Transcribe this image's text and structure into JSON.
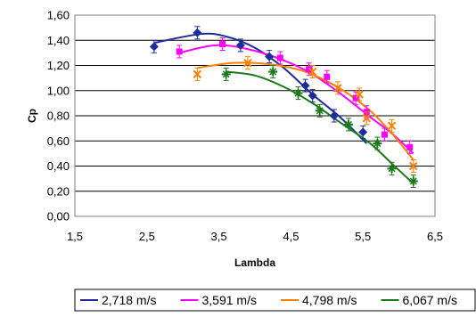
{
  "chart_data": {
    "type": "scatter",
    "title": "",
    "xlabel": "Lambda",
    "ylabel": "Cp",
    "xlim": [
      1.5,
      6.5
    ],
    "ylim": [
      0.0,
      1.6
    ],
    "x_ticks": [
      "1,5",
      "2,5",
      "3,5",
      "4,5",
      "5,5",
      "6,5"
    ],
    "y_ticks": [
      "0,00",
      "0,20",
      "0,40",
      "0,60",
      "0,80",
      "1,00",
      "1,20",
      "1,40",
      "1,60"
    ],
    "grid": true,
    "legend_position": "bottom",
    "series": [
      {
        "name": "2,718 m/s",
        "color": "#1f2d9a",
        "marker": "diamond",
        "points": [
          [
            2.6,
            1.35
          ],
          [
            3.2,
            1.46
          ],
          [
            3.8,
            1.36
          ],
          [
            4.2,
            1.27
          ],
          [
            4.7,
            1.04
          ],
          [
            4.8,
            0.96
          ],
          [
            5.1,
            0.8
          ],
          [
            5.5,
            0.67
          ]
        ],
        "fit": [
          [
            2.6,
            1.38
          ],
          [
            3.25,
            1.45
          ],
          [
            3.6,
            1.43
          ],
          [
            4.0,
            1.34
          ],
          [
            4.4,
            1.18
          ],
          [
            4.8,
            0.97
          ],
          [
            5.2,
            0.78
          ],
          [
            5.55,
            0.58
          ]
        ]
      },
      {
        "name": "3,591 m/s",
        "color": "#ff00ff",
        "marker": "square",
        "points": [
          [
            2.95,
            1.31
          ],
          [
            3.55,
            1.37
          ],
          [
            4.35,
            1.26
          ],
          [
            4.75,
            1.17
          ],
          [
            5.0,
            1.11
          ],
          [
            5.4,
            0.94
          ],
          [
            5.55,
            0.83
          ],
          [
            5.8,
            0.65
          ],
          [
            6.15,
            0.55
          ]
        ],
        "fit": [
          [
            2.95,
            1.3
          ],
          [
            3.45,
            1.36
          ],
          [
            3.9,
            1.33
          ],
          [
            4.4,
            1.24
          ],
          [
            4.8,
            1.13
          ],
          [
            5.2,
            0.97
          ],
          [
            5.6,
            0.79
          ],
          [
            5.9,
            0.66
          ],
          [
            6.2,
            0.5
          ]
        ]
      },
      {
        "name": "4,798 m/s",
        "color": "#ff8000",
        "marker": "cross",
        "points": [
          [
            3.2,
            1.13
          ],
          [
            3.9,
            1.22
          ],
          [
            4.8,
            1.15
          ],
          [
            5.15,
            1.02
          ],
          [
            5.45,
            0.97
          ],
          [
            5.55,
            0.78
          ],
          [
            5.9,
            0.72
          ],
          [
            6.2,
            0.4
          ]
        ],
        "fit": [
          [
            3.2,
            1.18
          ],
          [
            3.7,
            1.22
          ],
          [
            4.2,
            1.21
          ],
          [
            4.7,
            1.15
          ],
          [
            5.2,
            1.01
          ],
          [
            5.6,
            0.84
          ],
          [
            5.9,
            0.66
          ],
          [
            6.2,
            0.45
          ]
        ]
      },
      {
        "name": "6,067 m/s",
        "color": "#1a7a1a",
        "marker": "star",
        "points": [
          [
            3.6,
            1.13
          ],
          [
            4.25,
            1.15
          ],
          [
            4.6,
            0.98
          ],
          [
            4.9,
            0.84
          ],
          [
            5.3,
            0.73
          ],
          [
            5.7,
            0.58
          ],
          [
            5.9,
            0.38
          ],
          [
            6.2,
            0.28
          ]
        ],
        "fit": [
          [
            3.6,
            1.15
          ],
          [
            4.0,
            1.12
          ],
          [
            4.4,
            1.03
          ],
          [
            4.8,
            0.9
          ],
          [
            5.2,
            0.74
          ],
          [
            5.6,
            0.58
          ],
          [
            5.9,
            0.42
          ],
          [
            6.2,
            0.26
          ]
        ]
      }
    ]
  }
}
